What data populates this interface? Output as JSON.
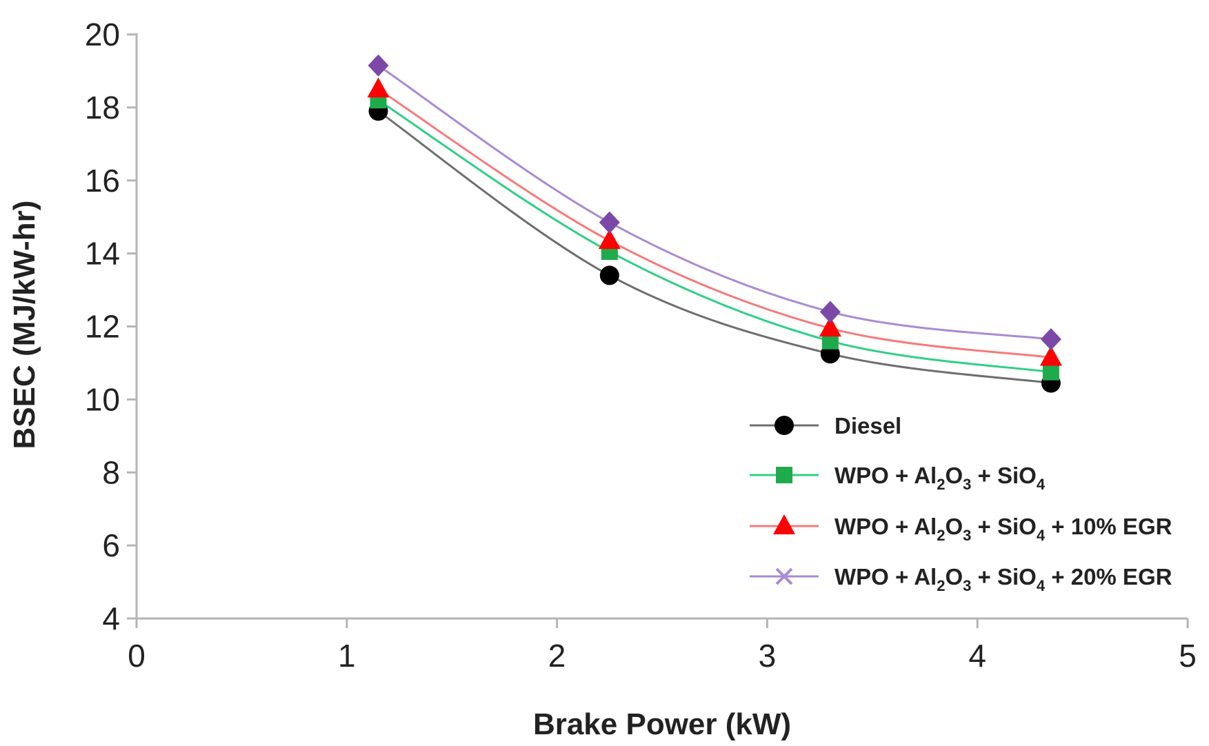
{
  "chart_data": {
    "type": "line",
    "title": "",
    "xlabel": "Brake Power (kW)",
    "ylabel": "BSEC (MJ/kW-hr)",
    "xlim": [
      0,
      5
    ],
    "ylim": [
      4,
      20
    ],
    "xticks": [
      "0",
      "1",
      "2",
      "3",
      "4",
      "5"
    ],
    "yticks": [
      "4",
      "6",
      "8",
      "10",
      "12",
      "14",
      "16",
      "18",
      "20"
    ],
    "grid": false,
    "legend_position": "bottom-right",
    "x": [
      1.15,
      2.25,
      3.3,
      4.35
    ],
    "series": [
      {
        "name": "Diesel",
        "name_parts": [
          "Diesel"
        ],
        "marker": "circle",
        "marker_color": "#000000",
        "line_color": "#6e6e6e",
        "values": [
          17.9,
          13.4,
          11.25,
          10.45
        ]
      },
      {
        "name": "WPO + Al2O3 + SiO4",
        "name_parts": [
          "WPO + Al",
          "2",
          "O",
          "3",
          " + SiO",
          "4"
        ],
        "marker": "square",
        "marker_color": "#1fab4b",
        "line_color": "#2fcf86",
        "values": [
          18.2,
          14.05,
          11.6,
          10.75
        ]
      },
      {
        "name": "WPO + Al2O3 + SiO4 + 10% EGR",
        "name_parts": [
          "WPO + Al",
          "2",
          "O",
          "3",
          " + SiO",
          "4",
          " + 10% EGR"
        ],
        "marker": "triangle",
        "marker_color": "#ff0000",
        "line_color": "#f77a7a",
        "values": [
          18.5,
          14.35,
          11.95,
          11.15
        ]
      },
      {
        "name": "WPO + Al2O3 + SiO4 + 20% EGR",
        "name_parts": [
          "WPO + Al",
          "2",
          "O",
          "3",
          " + SiO",
          "4",
          " + 20% EGR"
        ],
        "marker": "diamond",
        "legend_marker": "x",
        "marker_color": "#7b48a8",
        "line_color": "#a98ad4",
        "values": [
          19.15,
          14.85,
          12.4,
          11.65
        ]
      }
    ]
  }
}
